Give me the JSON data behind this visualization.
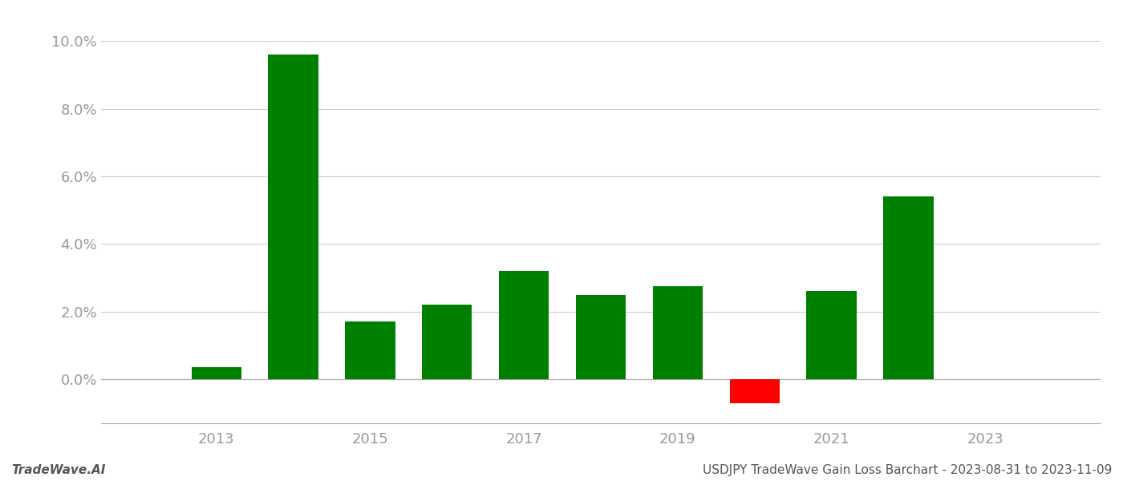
{
  "years": [
    2013,
    2014,
    2015,
    2016,
    2017,
    2018,
    2019,
    2020,
    2021,
    2022
  ],
  "values": [
    0.0035,
    0.096,
    0.017,
    0.022,
    0.032,
    0.025,
    0.0275,
    -0.007,
    0.026,
    0.054
  ],
  "colors": [
    "#008000",
    "#008000",
    "#008000",
    "#008000",
    "#008000",
    "#008000",
    "#008000",
    "#ff0000",
    "#008000",
    "#008000"
  ],
  "ylim": [
    -0.013,
    0.105
  ],
  "yticks": [
    0.0,
    0.02,
    0.04,
    0.06,
    0.08,
    0.1
  ],
  "xtick_positions": [
    2013,
    2015,
    2017,
    2019,
    2021,
    2023
  ],
  "xtick_labels": [
    "2013",
    "2015",
    "2017",
    "2019",
    "2021",
    "2023"
  ],
  "bar_width": 0.65,
  "background_color": "#ffffff",
  "grid_color": "#cccccc",
  "tick_label_color": "#999999",
  "footer_left": "TradeWave.AI",
  "footer_right": "USDJPY TradeWave Gain Loss Barchart - 2023-08-31 to 2023-11-09",
  "footer_fontsize": 11,
  "tick_fontsize": 13,
  "xlim": [
    2011.5,
    2024.5
  ]
}
